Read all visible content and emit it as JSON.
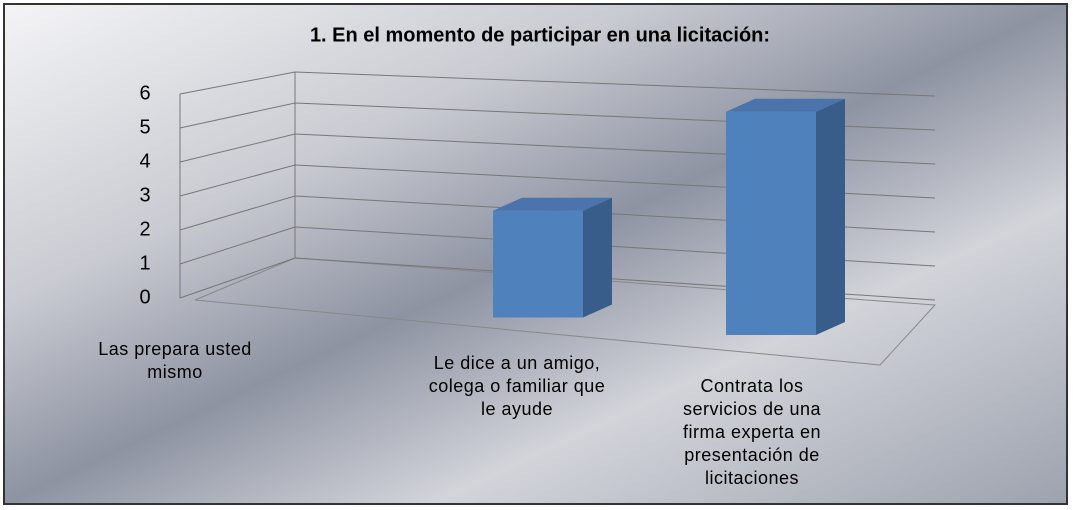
{
  "chart_data": {
    "type": "bar3d",
    "title": "1.  En el momento de participar en una licitación:",
    "categories": [
      "Las prepara usted mismo",
      "Le dice a un amigo, colega o familiar que le ayude",
      "Contrata los servicios de una firma experta en presentación de licitaciones"
    ],
    "values": [
      0,
      3,
      6
    ],
    "color": "#4f81bd",
    "ylim": [
      0,
      6
    ],
    "yticks": [
      0,
      1,
      2,
      3,
      4,
      5,
      6
    ],
    "grid": true
  }
}
